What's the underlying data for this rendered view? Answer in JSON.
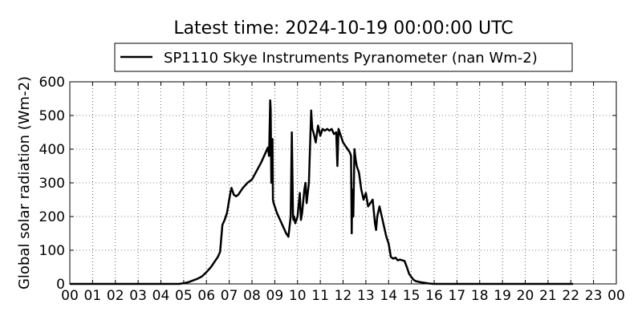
{
  "chart_data": {
    "type": "line",
    "title": "Latest time: 2024-10-19 00:00:00 UTC",
    "ylabel": "Global solar radiation (Wm-2)",
    "xlabel": "",
    "xlim": [
      0,
      24
    ],
    "ylim": [
      0,
      600
    ],
    "grid": true,
    "legend_position": "top-center",
    "x_ticks": [
      "00",
      "01",
      "02",
      "03",
      "04",
      "05",
      "06",
      "07",
      "08",
      "09",
      "10",
      "11",
      "12",
      "13",
      "14",
      "15",
      "16",
      "17",
      "18",
      "19",
      "20",
      "21",
      "22",
      "23",
      "00"
    ],
    "y_ticks": [
      "0",
      "100",
      "200",
      "300",
      "400",
      "500",
      "600"
    ],
    "series": [
      {
        "name": "SP1110 Skye Instruments Pyranometer (nan Wm-2)",
        "color": "#000000",
        "x": [
          0,
          1,
          2,
          3,
          4,
          4.8,
          5.0,
          5.2,
          5.4,
          5.6,
          5.8,
          6.0,
          6.2,
          6.3,
          6.4,
          6.5,
          6.6,
          6.7,
          6.8,
          6.9,
          7.0,
          7.05,
          7.1,
          7.15,
          7.2,
          7.3,
          7.4,
          7.6,
          7.8,
          8.0,
          8.2,
          8.4,
          8.6,
          8.7,
          8.75,
          8.8,
          8.82,
          8.85,
          8.9,
          8.92,
          8.95,
          9.0,
          9.1,
          9.2,
          9.3,
          9.4,
          9.5,
          9.6,
          9.7,
          9.75,
          9.8,
          9.82,
          9.85,
          9.9,
          10.0,
          10.1,
          10.15,
          10.2,
          10.3,
          10.35,
          10.4,
          10.5,
          10.6,
          10.62,
          10.65,
          10.7,
          10.8,
          10.9,
          11.0,
          11.1,
          11.2,
          11.3,
          11.4,
          11.5,
          11.6,
          11.7,
          11.75,
          11.8,
          11.9,
          12.0,
          12.1,
          12.2,
          12.3,
          12.35,
          12.38,
          12.4,
          12.45,
          12.5,
          12.55,
          12.6,
          12.7,
          12.8,
          12.9,
          13.0,
          13.1,
          13.2,
          13.3,
          13.4,
          13.45,
          13.5,
          13.6,
          13.7,
          13.8,
          13.9,
          14.0,
          14.1,
          14.2,
          14.3,
          14.4,
          14.5,
          14.6,
          14.7,
          14.8,
          14.9,
          15.0,
          15.1,
          15.2,
          15.4,
          15.6,
          15.8,
          16.0,
          16.5,
          17,
          18,
          19,
          20,
          21,
          22,
          22.1
        ],
        "values": [
          0,
          0,
          0,
          0,
          0,
          0,
          2,
          5,
          10,
          15,
          22,
          35,
          50,
          60,
          70,
          80,
          95,
          175,
          190,
          210,
          250,
          270,
          285,
          275,
          265,
          260,
          265,
          285,
          300,
          310,
          335,
          360,
          390,
          405,
          380,
          545,
          520,
          300,
          430,
          250,
          240,
          230,
          210,
          195,
          180,
          165,
          150,
          140,
          200,
          450,
          210,
          190,
          200,
          180,
          200,
          270,
          190,
          210,
          280,
          300,
          240,
          300,
          515,
          490,
          460,
          450,
          420,
          470,
          440,
          460,
          455,
          460,
          455,
          460,
          445,
          450,
          350,
          460,
          440,
          420,
          410,
          400,
          390,
          380,
          150,
          280,
          200,
          400,
          370,
          350,
          330,
          280,
          250,
          270,
          230,
          240,
          250,
          180,
          160,
          200,
          230,
          200,
          170,
          140,
          120,
          80,
          75,
          78,
          70,
          72,
          70,
          68,
          50,
          30,
          20,
          12,
          8,
          5,
          3,
          1,
          0,
          0,
          0,
          0,
          0,
          0,
          0,
          0,
          0
        ]
      }
    ]
  }
}
